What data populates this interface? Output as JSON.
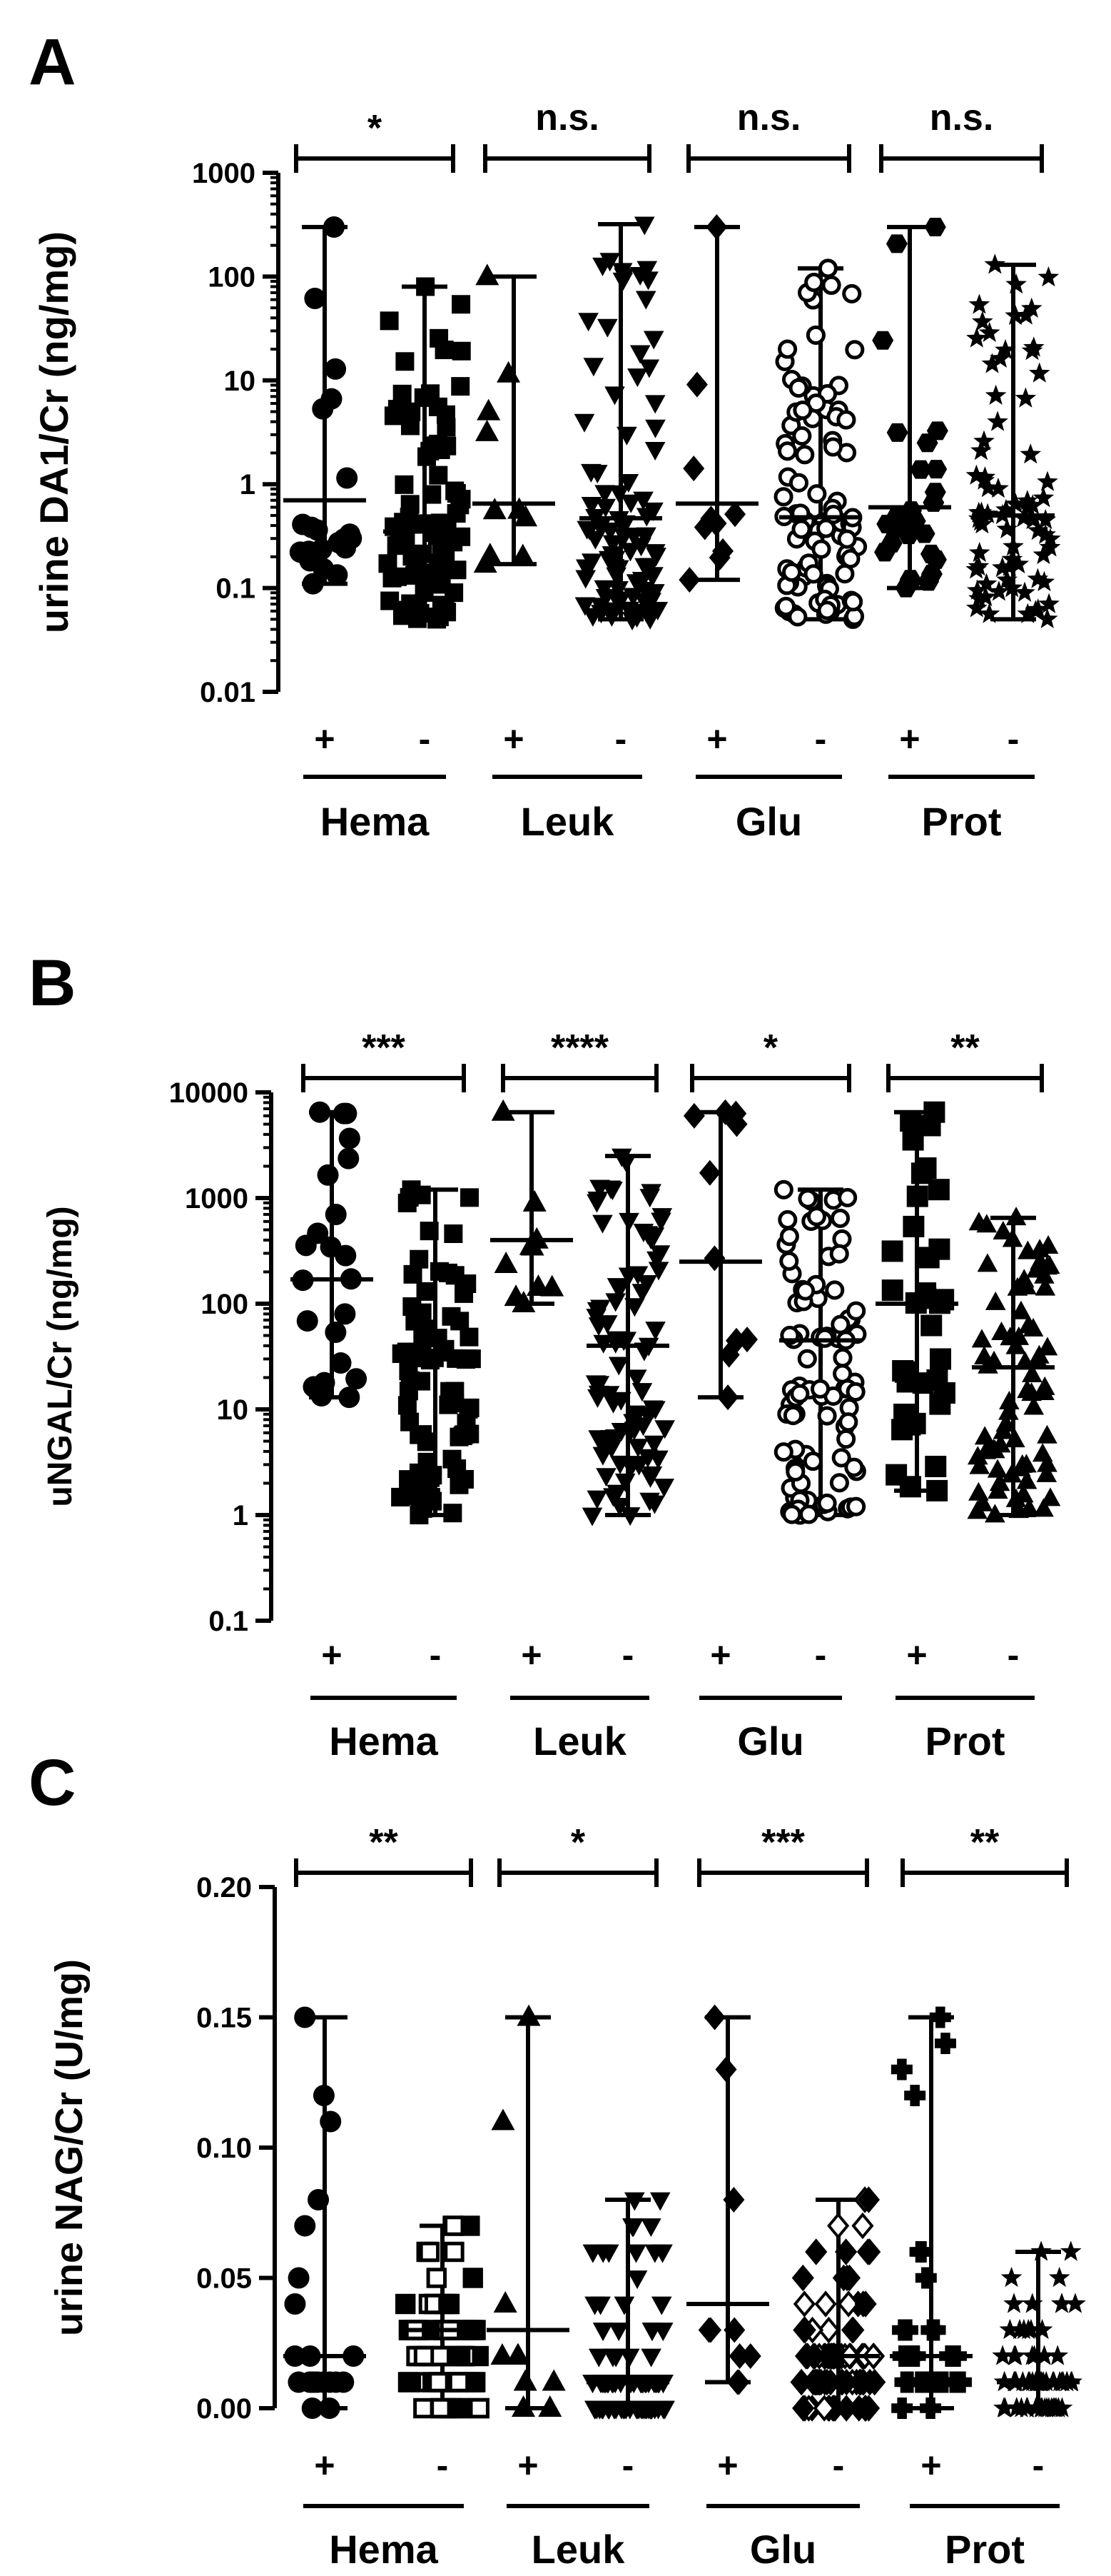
{
  "chart_data": [
    {
      "panel": "A",
      "type": "scatter",
      "ylabel": "urine DA1/Cr (ng/mg)",
      "yscale": "log",
      "ylim": [
        0.01,
        1000
      ],
      "yticks": [
        "1000",
        "100",
        "10",
        "1",
        "0.1",
        "0.01"
      ],
      "groups": [
        "Hema",
        "Leuk",
        "Glu",
        "Prot"
      ],
      "signs": [
        "+",
        "-",
        "+",
        "-",
        "+",
        "-",
        "+",
        "-"
      ],
      "significance": [
        "*",
        "n.s.",
        "n.s.",
        "n.s."
      ],
      "series": [
        {
          "group": "Hema",
          "sign": "+",
          "marker": "circle",
          "median": 0.7,
          "min": 0.11,
          "max": 300,
          "n": 22
        },
        {
          "group": "Hema",
          "sign": "-",
          "marker": "square",
          "median": 0.35,
          "min": 0.05,
          "max": 80,
          "n": 80
        },
        {
          "group": "Leuk",
          "sign": "+",
          "marker": "triangle-up",
          "median": 0.65,
          "min": 0.17,
          "max": 100,
          "n": 10
        },
        {
          "group": "Leuk",
          "sign": "-",
          "marker": "triangle-down",
          "median": 0.47,
          "min": 0.05,
          "max": 320,
          "n": 90
        },
        {
          "group": "Glu",
          "sign": "+",
          "marker": "diamond",
          "median": 0.65,
          "min": 0.12,
          "max": 300,
          "n": 10
        },
        {
          "group": "Glu",
          "sign": "-",
          "marker": "circle-open",
          "median": 0.48,
          "min": 0.05,
          "max": 120,
          "n": 90
        },
        {
          "group": "Prot",
          "sign": "+",
          "marker": "hexagon",
          "median": 0.6,
          "min": 0.1,
          "max": 300,
          "n": 28
        },
        {
          "group": "Prot",
          "sign": "-",
          "marker": "star",
          "median": 0.5,
          "min": 0.05,
          "max": 130,
          "n": 75
        }
      ]
    },
    {
      "panel": "B",
      "type": "scatter",
      "ylabel": "uNGAL/Cr (ng/mg)",
      "yscale": "log",
      "ylim": [
        0.1,
        10000
      ],
      "yticks": [
        "10000",
        "1000",
        "100",
        "10",
        "1",
        "0.1"
      ],
      "groups": [
        "Hema",
        "Leuk",
        "Glu",
        "Prot"
      ],
      "signs": [
        "+",
        "-",
        "+",
        "-",
        "+",
        "-",
        "+",
        "-"
      ],
      "significance": [
        "***",
        "****",
        "*",
        "**"
      ],
      "series": [
        {
          "group": "Hema",
          "sign": "+",
          "marker": "circle",
          "median": 170,
          "min": 13,
          "max": 6500,
          "n": 22
        },
        {
          "group": "Hema",
          "sign": "-",
          "marker": "square",
          "median": 30,
          "min": 1,
          "max": 1200,
          "n": 80
        },
        {
          "group": "Leuk",
          "sign": "+",
          "marker": "triangle-up",
          "median": 400,
          "min": 100,
          "max": 6500,
          "n": 10
        },
        {
          "group": "Leuk",
          "sign": "-",
          "marker": "triangle-down",
          "median": 40,
          "min": 1,
          "max": 2500,
          "n": 90
        },
        {
          "group": "Glu",
          "sign": "+",
          "marker": "diamond",
          "median": 250,
          "min": 13,
          "max": 6500,
          "n": 10
        },
        {
          "group": "Glu",
          "sign": "-",
          "marker": "circle-open",
          "median": 45,
          "min": 1,
          "max": 1200,
          "n": 90
        },
        {
          "group": "Prot",
          "sign": "+",
          "marker": "square",
          "median": 100,
          "min": 1.7,
          "max": 6500,
          "n": 35
        },
        {
          "group": "Prot",
          "sign": "-",
          "marker": "triangle-up",
          "median": 25,
          "min": 1,
          "max": 650,
          "n": 75
        }
      ]
    },
    {
      "panel": "C",
      "type": "scatter",
      "ylabel": "urine NAG/Cr (U/mg)",
      "yscale": "linear",
      "ylim": [
        0,
        0.2
      ],
      "yticks": [
        "0.20",
        "0.15",
        "0.10",
        "0.05",
        "0.00"
      ],
      "groups": [
        "Hema",
        "Leuk",
        "Glu",
        "Prot"
      ],
      "signs": [
        "+",
        "-",
        "+",
        "-",
        "+",
        "-",
        "+",
        "-"
      ],
      "significance": [
        "**",
        "*",
        "***",
        "**"
      ],
      "series": [
        {
          "group": "Hema",
          "sign": "+",
          "marker": "circle",
          "median": 0.02,
          "min": 0.0,
          "max": 0.15,
          "n": 22
        },
        {
          "group": "Hema",
          "sign": "-",
          "marker": "square-mixed",
          "median": 0.03,
          "min": 0.0,
          "max": 0.07,
          "n": 80
        },
        {
          "group": "Leuk",
          "sign": "+",
          "marker": "triangle-up",
          "median": 0.03,
          "min": 0.0,
          "max": 0.15,
          "n": 10
        },
        {
          "group": "Leuk",
          "sign": "-",
          "marker": "triangle-down",
          "median": 0.01,
          "min": 0.0,
          "max": 0.08,
          "n": 90
        },
        {
          "group": "Glu",
          "sign": "+",
          "marker": "diamond",
          "median": 0.04,
          "min": 0.01,
          "max": 0.15,
          "n": 10
        },
        {
          "group": "Glu",
          "sign": "-",
          "marker": "diamond-mixed",
          "median": 0.02,
          "min": 0.0,
          "max": 0.08,
          "n": 90
        },
        {
          "group": "Prot",
          "sign": "+",
          "marker": "cross",
          "median": 0.02,
          "min": 0.0,
          "max": 0.15,
          "n": 30
        },
        {
          "group": "Prot",
          "sign": "-",
          "marker": "star",
          "median": 0.01,
          "min": 0.0,
          "max": 0.06,
          "n": 75
        }
      ]
    }
  ]
}
